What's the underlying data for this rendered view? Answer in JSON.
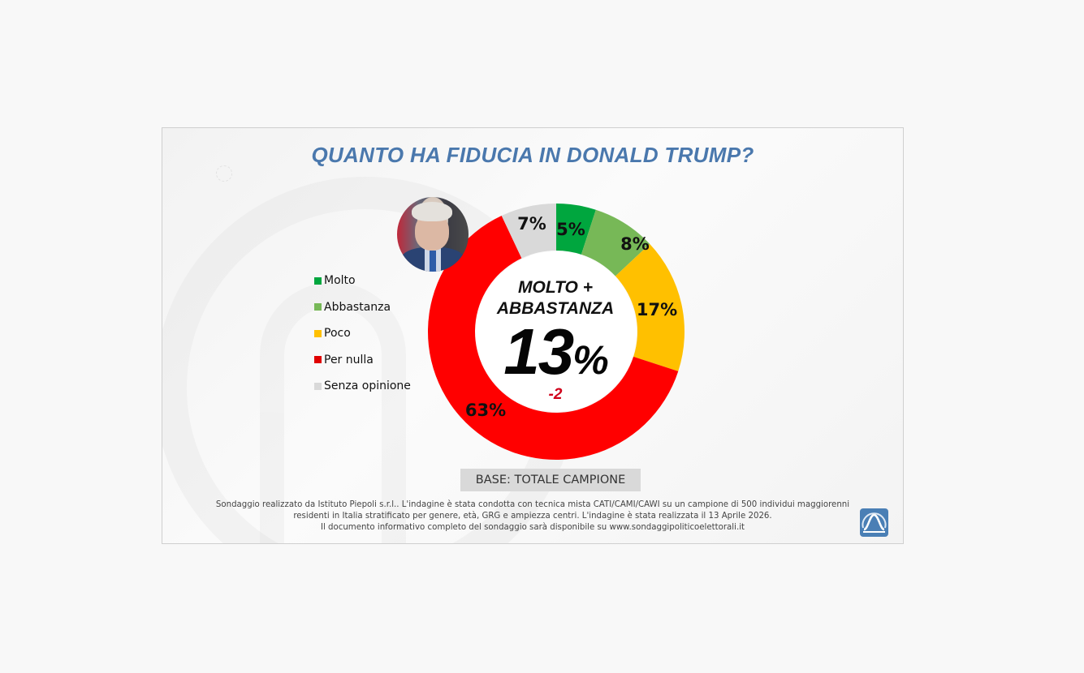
{
  "title": "QUANTO HA FIDUCIA IN DONALD TRUMP?",
  "legend": [
    {
      "label": "Molto",
      "color": "#00a63e"
    },
    {
      "label": "Abbastanza",
      "color": "#77b857"
    },
    {
      "label": "Poco",
      "color": "#ffc000"
    },
    {
      "label": "Per nulla",
      "color": "#ff0000"
    },
    {
      "label": "Senza opinione",
      "color": "#d9d9d9"
    }
  ],
  "center": {
    "caption_line1": "MOLTO +",
    "caption_line2": "ABBASTANZA",
    "value": "13",
    "value_suffix": "%",
    "delta": "-2",
    "delta_color": "#d0021b"
  },
  "segment_labels": [
    "5%",
    "8%",
    "17%",
    "63%",
    "7%"
  ],
  "base_label": "BASE: TOTALE CAMPIONE",
  "footnote": {
    "line1": "Sondaggio realizzato da Istituto Piepoli s.r.l.. L'indagine è stata condotta con tecnica mista CATI/CAMI/CAWI su un campione di 500 individui maggiorenni",
    "line2": "residenti in Italia stratificato per genere, età, GRG e ampiezza centri. L'indagine è stata realizzata il 13 Aprile 2026.",
    "line3": "Il documento informativo completo del sondaggio sarà disponibile su www.sondaggipoliticoelettorali.it"
  },
  "chart_data": {
    "type": "pie",
    "subtype": "donut",
    "title": "QUANTO HA FIDUCIA IN DONALD TRUMP?",
    "categories": [
      "Molto",
      "Abbastanza",
      "Poco",
      "Per nulla",
      "Senza opinione"
    ],
    "values": [
      5,
      8,
      17,
      63,
      7
    ],
    "unit": "%",
    "colors": [
      "#00a63e",
      "#77b857",
      "#ffc000",
      "#ff0000",
      "#d9d9d9"
    ],
    "center_annotation": {
      "label": "MOLTO + ABBASTANZA",
      "value": 13,
      "unit": "%",
      "change": -2
    },
    "legend_position": "left",
    "base": "BASE: TOTALE CAMPIONE"
  }
}
